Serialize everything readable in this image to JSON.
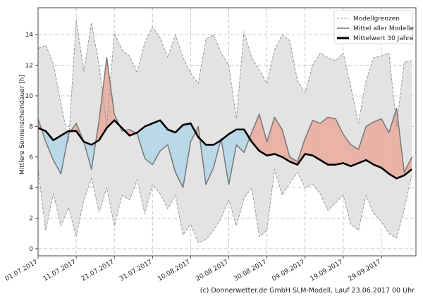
{
  "chart_data": {
    "type": "area",
    "title": "",
    "xlabel": "",
    "ylabel": "Mittlere Sonnenscheindauer [h]",
    "ylim": [
      -0.3,
      15.8
    ],
    "xlim_days": [
      0,
      99
    ],
    "grid": true,
    "yticks": [
      0,
      2,
      4,
      6,
      8,
      10,
      12,
      14
    ],
    "xtick_days": [
      0,
      10,
      20,
      30,
      40,
      50,
      60,
      70,
      80,
      90
    ],
    "xtick_labels": [
      "01.07.2017",
      "11.07.2017",
      "21.07.2017",
      "31.07.2017",
      "10.08.2017",
      "20.08.2017",
      "30.08.2017",
      "09.09.2017",
      "19.09.2017",
      "29.09.2017"
    ],
    "legend": {
      "position": "top-right",
      "entries": [
        "Modellgrenzen",
        "Mittel aller Modelle",
        "Mittelwert 30 Jahre"
      ]
    },
    "colors": {
      "band": "#e3e3e3",
      "above": "#e8b2a6",
      "above_light": "#f7cfc6",
      "below": "#b9d9e8",
      "below_light": "#d3eef8",
      "model_line": "#777777",
      "clim_line": "#000000",
      "bounds_line": "#999999"
    },
    "x": [
      0,
      2,
      4,
      6,
      8,
      10,
      12,
      14,
      16,
      18,
      20,
      22,
      24,
      26,
      28,
      30,
      32,
      34,
      36,
      38,
      40,
      42,
      44,
      46,
      48,
      50,
      52,
      54,
      56,
      58,
      60,
      62,
      64,
      66,
      68,
      70,
      72,
      74,
      76,
      78,
      80,
      82,
      84,
      86,
      88,
      90,
      92,
      94,
      96,
      98
    ],
    "series": [
      {
        "name": "Modellgrenzen oben",
        "values": [
          13.1,
          13.3,
          12.1,
          9.5,
          7.0,
          14.9,
          11.6,
          14.8,
          12.0,
          8.0,
          14.1,
          13.0,
          12.6,
          11.5,
          13.5,
          14.5,
          13.8,
          12.5,
          14.0,
          12.5,
          11.5,
          10.8,
          13.7,
          14.0,
          12.8,
          12.0,
          8.5,
          14.2,
          12.5,
          11.7,
          10.8,
          13.0,
          14.0,
          13.6,
          11.0,
          10.2,
          12.0,
          12.8,
          12.5,
          12.3,
          12.8,
          10.6,
          8.2,
          11.0,
          12.5,
          12.6,
          12.8,
          8.0,
          12.2,
          12.3
        ]
      },
      {
        "name": "Modellgrenzen unten",
        "values": [
          5.2,
          1.2,
          3.6,
          1.5,
          2.7,
          0.8,
          3.2,
          4.6,
          2.4,
          4.0,
          1.5,
          3.5,
          3.2,
          4.5,
          2.3,
          4.2,
          3.6,
          2.6,
          3.5,
          0.9,
          1.6,
          0.4,
          0.6,
          1.2,
          2.0,
          3.2,
          1.5,
          3.3,
          4.0,
          0.8,
          1.2,
          5.2,
          3.5,
          4.3,
          5.0,
          4.0,
          4.2,
          3.6,
          2.5,
          3.0,
          3.5,
          1.6,
          1.2,
          3.5,
          2.3,
          1.8,
          1.0,
          0.7,
          2.6,
          4.8
        ]
      },
      {
        "name": "Mittel aller Modelle",
        "values": [
          8.5,
          7.0,
          5.8,
          4.9,
          7.5,
          8.2,
          7.0,
          5.2,
          8.4,
          12.5,
          8.8,
          7.7,
          7.8,
          7.5,
          5.9,
          5.5,
          6.4,
          6.8,
          5.0,
          4.0,
          7.0,
          8.0,
          4.2,
          5.3,
          7.2,
          4.2,
          6.8,
          6.3,
          7.6,
          8.8,
          7.0,
          8.6,
          7.8,
          6.0,
          5.7,
          7.2,
          8.4,
          8.2,
          8.6,
          8.5,
          7.5,
          6.8,
          6.5,
          8.0,
          8.3,
          8.5,
          7.6,
          9.2,
          5.0,
          6.0
        ]
      },
      {
        "name": "Mittelwert 30 Jahre",
        "values": [
          7.9,
          7.7,
          7.1,
          7.4,
          7.7,
          7.7,
          7.0,
          6.8,
          7.1,
          7.9,
          8.4,
          7.9,
          7.4,
          7.6,
          8.0,
          8.2,
          8.4,
          7.8,
          7.6,
          8.1,
          8.2,
          7.3,
          6.8,
          6.8,
          7.1,
          7.5,
          7.8,
          7.8,
          7.0,
          6.4,
          6.1,
          6.2,
          6.0,
          5.7,
          5.5,
          6.2,
          6.1,
          5.8,
          5.5,
          5.5,
          5.6,
          5.4,
          5.6,
          5.8,
          5.5,
          5.3,
          4.9,
          4.6,
          4.8,
          5.2
        ]
      }
    ]
  },
  "footer": {
    "credit": "(c) Donnerwetter.de GmbH SLM-Modell, Lauf 23.06.2017 00 Uhr"
  }
}
